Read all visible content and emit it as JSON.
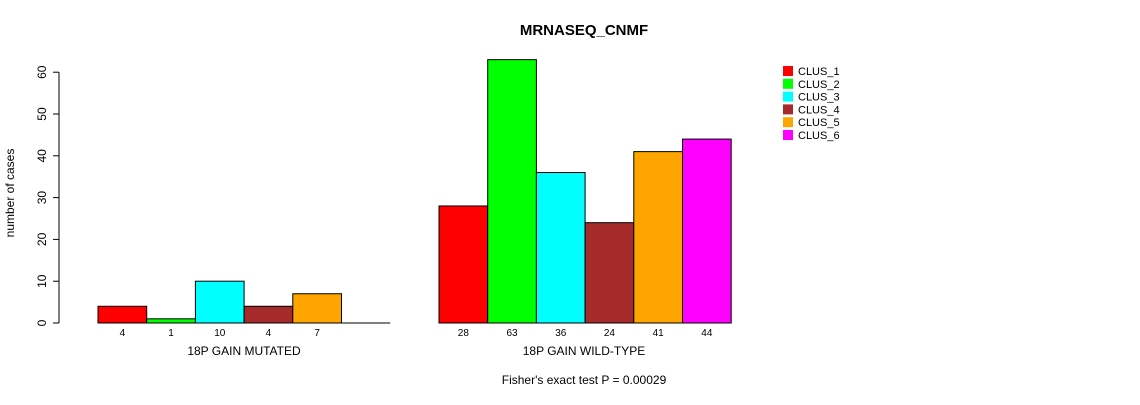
{
  "chart_data": {
    "type": "bar",
    "title": "MRNASEQ_CNMF",
    "ylabel": "number of cases",
    "ylim": [
      0,
      60
    ],
    "yticks": [
      0,
      10,
      20,
      30,
      40,
      50,
      60
    ],
    "series_names": [
      "CLUS_1",
      "CLUS_2",
      "CLUS_3",
      "CLUS_4",
      "CLUS_5",
      "CLUS_6"
    ],
    "colors": [
      "#ff0000",
      "#00ff00",
      "#00ffff",
      "#a52a2a",
      "#ffa500",
      "#ff00ff"
    ],
    "groups": [
      {
        "label": "18P GAIN MUTATED",
        "values": [
          4,
          1,
          10,
          4,
          7,
          0
        ],
        "count_labels": [
          "4",
          "1",
          "10",
          "4",
          "7"
        ]
      },
      {
        "label": "18P GAIN WILD-TYPE",
        "values": [
          28,
          63,
          36,
          24,
          41,
          44
        ],
        "count_labels": [
          "28",
          "63",
          "36",
          "24",
          "41",
          "44"
        ]
      }
    ],
    "legend_position": "top-right",
    "caption": "Fisher's exact test P = 0.00029"
  }
}
